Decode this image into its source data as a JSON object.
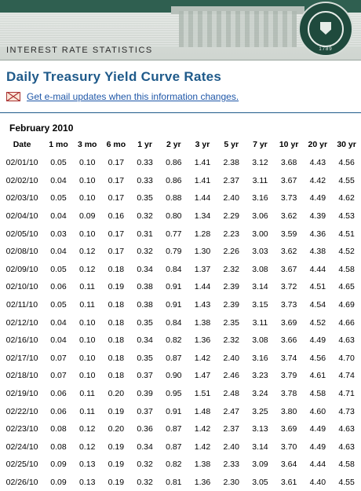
{
  "header": {
    "section": "INTEREST RATE STATISTICS",
    "seal_year": "1789"
  },
  "page": {
    "title": "Daily Treasury Yield Curve Rates",
    "email_link": "Get e-mail updates when this information changes.",
    "month": "February 2010"
  },
  "table": {
    "headers": [
      "Date",
      "1 mo",
      "3 mo",
      "6 mo",
      "1 yr",
      "2 yr",
      "3 yr",
      "5 yr",
      "7 yr",
      "10 yr",
      "20 yr",
      "30 yr"
    ],
    "rows": [
      [
        "02/01/10",
        "0.05",
        "0.10",
        "0.17",
        "0.33",
        "0.86",
        "1.41",
        "2.38",
        "3.12",
        "3.68",
        "4.43",
        "4.56"
      ],
      [
        "02/02/10",
        "0.04",
        "0.10",
        "0.17",
        "0.33",
        "0.86",
        "1.41",
        "2.37",
        "3.11",
        "3.67",
        "4.42",
        "4.55"
      ],
      [
        "02/03/10",
        "0.05",
        "0.10",
        "0.17",
        "0.35",
        "0.88",
        "1.44",
        "2.40",
        "3.16",
        "3.73",
        "4.49",
        "4.62"
      ],
      [
        "02/04/10",
        "0.04",
        "0.09",
        "0.16",
        "0.32",
        "0.80",
        "1.34",
        "2.29",
        "3.06",
        "3.62",
        "4.39",
        "4.53"
      ],
      [
        "02/05/10",
        "0.03",
        "0.10",
        "0.17",
        "0.31",
        "0.77",
        "1.28",
        "2.23",
        "3.00",
        "3.59",
        "4.36",
        "4.51"
      ],
      [
        "02/08/10",
        "0.04",
        "0.12",
        "0.17",
        "0.32",
        "0.79",
        "1.30",
        "2.26",
        "3.03",
        "3.62",
        "4.38",
        "4.52"
      ],
      [
        "02/09/10",
        "0.05",
        "0.12",
        "0.18",
        "0.34",
        "0.84",
        "1.37",
        "2.32",
        "3.08",
        "3.67",
        "4.44",
        "4.58"
      ],
      [
        "02/10/10",
        "0.06",
        "0.11",
        "0.19",
        "0.38",
        "0.91",
        "1.44",
        "2.39",
        "3.14",
        "3.72",
        "4.51",
        "4.65"
      ],
      [
        "02/11/10",
        "0.05",
        "0.11",
        "0.18",
        "0.38",
        "0.91",
        "1.43",
        "2.39",
        "3.15",
        "3.73",
        "4.54",
        "4.69"
      ],
      [
        "02/12/10",
        "0.04",
        "0.10",
        "0.18",
        "0.35",
        "0.84",
        "1.38",
        "2.35",
        "3.11",
        "3.69",
        "4.52",
        "4.66"
      ],
      [
        "02/16/10",
        "0.04",
        "0.10",
        "0.18",
        "0.34",
        "0.82",
        "1.36",
        "2.32",
        "3.08",
        "3.66",
        "4.49",
        "4.63"
      ],
      [
        "02/17/10",
        "0.07",
        "0.10",
        "0.18",
        "0.35",
        "0.87",
        "1.42",
        "2.40",
        "3.16",
        "3.74",
        "4.56",
        "4.70"
      ],
      [
        "02/18/10",
        "0.07",
        "0.10",
        "0.18",
        "0.37",
        "0.90",
        "1.47",
        "2.46",
        "3.23",
        "3.79",
        "4.61",
        "4.74"
      ],
      [
        "02/19/10",
        "0.06",
        "0.11",
        "0.20",
        "0.39",
        "0.95",
        "1.51",
        "2.48",
        "3.24",
        "3.78",
        "4.58",
        "4.71"
      ],
      [
        "02/22/10",
        "0.06",
        "0.11",
        "0.19",
        "0.37",
        "0.91",
        "1.48",
        "2.47",
        "3.25",
        "3.80",
        "4.60",
        "4.73"
      ],
      [
        "02/23/10",
        "0.08",
        "0.12",
        "0.20",
        "0.36",
        "0.87",
        "1.42",
        "2.37",
        "3.13",
        "3.69",
        "4.49",
        "4.63"
      ],
      [
        "02/24/10",
        "0.08",
        "0.12",
        "0.19",
        "0.34",
        "0.87",
        "1.42",
        "2.40",
        "3.14",
        "3.70",
        "4.49",
        "4.63"
      ],
      [
        "02/25/10",
        "0.09",
        "0.13",
        "0.19",
        "0.32",
        "0.82",
        "1.38",
        "2.33",
        "3.09",
        "3.64",
        "4.44",
        "4.58"
      ],
      [
        "02/26/10",
        "0.09",
        "0.13",
        "0.19",
        "0.32",
        "0.81",
        "1.36",
        "2.30",
        "3.05",
        "3.61",
        "4.40",
        "4.55"
      ]
    ]
  }
}
